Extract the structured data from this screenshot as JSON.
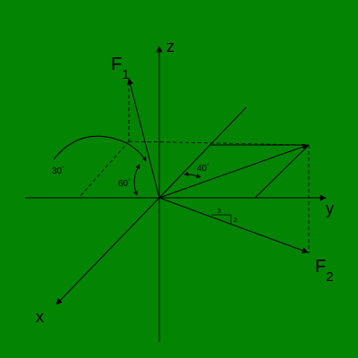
{
  "colors": {
    "background": "#038403",
    "ink": "#000000"
  },
  "axes": {
    "x_label": "x",
    "y_label": "y",
    "z_label": "z"
  },
  "forces": {
    "f1": {
      "base": "F",
      "subscript": "1"
    },
    "f2": {
      "base": "F",
      "subscript": "2"
    }
  },
  "angles": {
    "a30": {
      "value": "30",
      "unit": "°"
    },
    "a60": {
      "value": "60",
      "unit": "°"
    },
    "a40": {
      "value": "40",
      "unit": "°"
    }
  },
  "slope": {
    "run": "3",
    "rise": "2"
  }
}
